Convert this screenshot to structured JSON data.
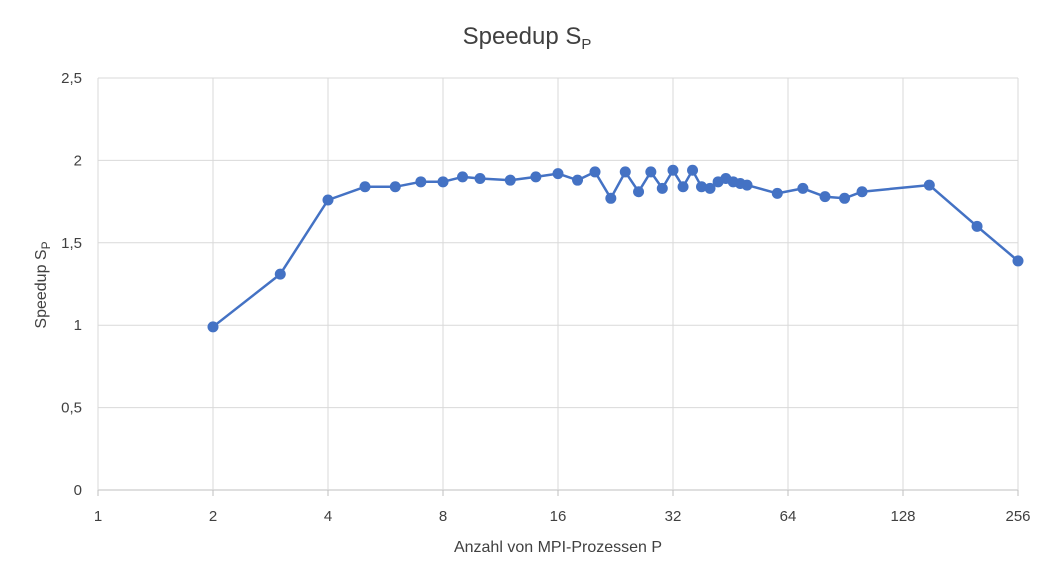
{
  "chart_data": {
    "type": "line",
    "title": "Speedup S",
    "title_sub": "P",
    "xlabel": "Anzahl von MPI-Prozessen P",
    "ylabel": "Speedup S",
    "ylabel_sub": "P",
    "x_scale": "log2",
    "xlim": [
      1,
      256
    ],
    "ylim": [
      0,
      2.5
    ],
    "x_ticks": [
      1,
      2,
      4,
      8,
      16,
      32,
      64,
      128,
      256
    ],
    "x_tick_labels": [
      "1",
      "2",
      "4",
      "8",
      "16",
      "32",
      "64",
      "128",
      "256"
    ],
    "y_ticks": [
      0,
      0.5,
      1,
      1.5,
      2,
      2.5
    ],
    "y_tick_labels": [
      "0",
      "0,5",
      "1",
      "1,5",
      "2",
      "2,5"
    ],
    "grid": true,
    "legend": "none",
    "series_color": "#4472c4",
    "series": [
      {
        "x": [
          2,
          3,
          4,
          5,
          6,
          7,
          8,
          9,
          10,
          12,
          14,
          16,
          18,
          20,
          22,
          24,
          26,
          28,
          30,
          32,
          34,
          36,
          38,
          40,
          42,
          44,
          46,
          48,
          50,
          60,
          70,
          80,
          90,
          100,
          150,
          200,
          256
        ],
        "y": [
          0.99,
          1.31,
          1.76,
          1.84,
          1.84,
          1.87,
          1.87,
          1.9,
          1.89,
          1.88,
          1.9,
          1.92,
          1.88,
          1.93,
          1.77,
          1.93,
          1.81,
          1.93,
          1.83,
          1.94,
          1.84,
          1.94,
          1.84,
          1.83,
          1.87,
          1.89,
          1.87,
          1.86,
          1.85,
          1.8,
          1.83,
          1.78,
          1.77,
          1.81,
          1.85,
          1.6,
          1.39
        ]
      }
    ]
  }
}
